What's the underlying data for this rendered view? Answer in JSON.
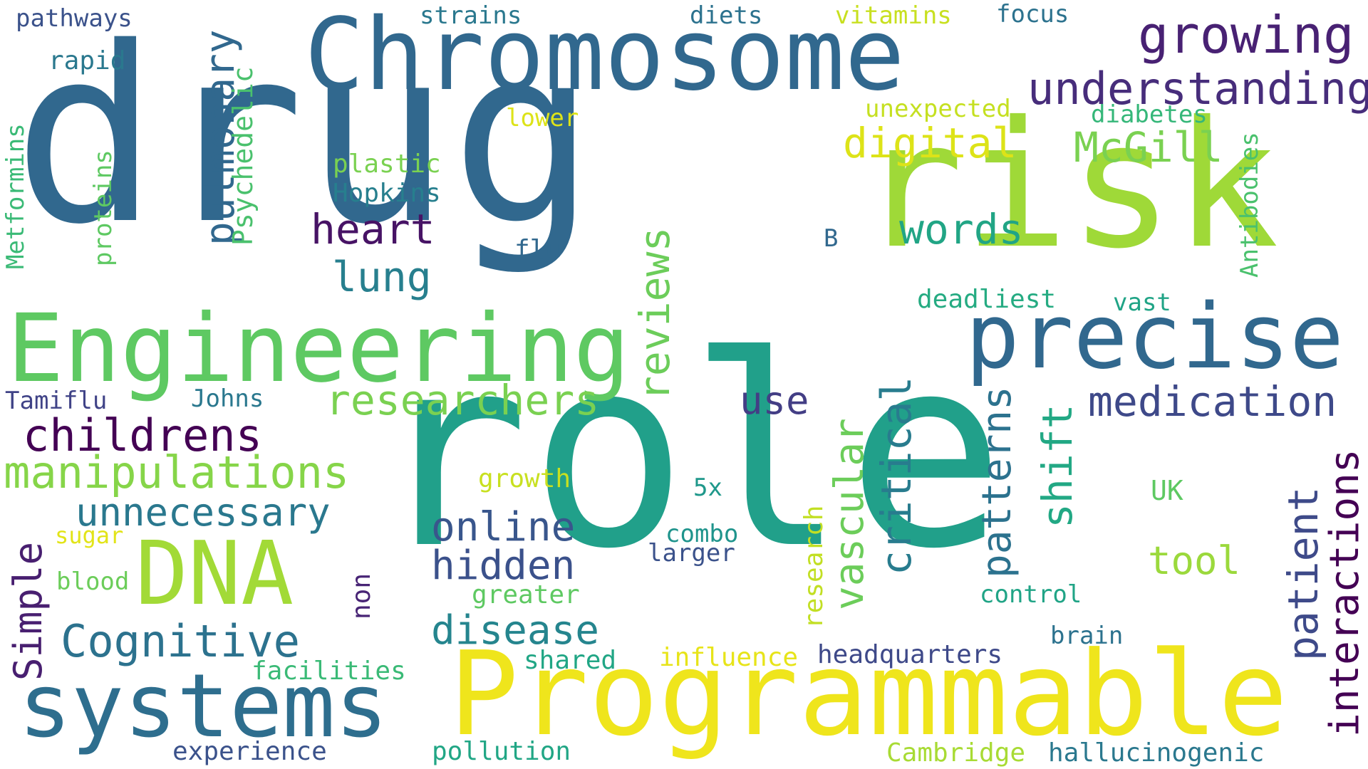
{
  "words": [
    {
      "text": "drug",
      "color": "#31688e",
      "vertical": false
    },
    {
      "text": "role",
      "color": "#21a08a",
      "vertical": false
    },
    {
      "text": "risk",
      "color": "#9fd938",
      "vertical": false
    },
    {
      "text": "Chromosome",
      "color": "#31688e",
      "vertical": false
    },
    {
      "text": "Programmable",
      "color": "#efe51c",
      "vertical": false
    },
    {
      "text": "Engineering",
      "color": "#5ec962",
      "vertical": false
    },
    {
      "text": "precise",
      "color": "#31688e",
      "vertical": false
    },
    {
      "text": "systems",
      "color": "#2e6e8e",
      "vertical": false
    },
    {
      "text": "DNA",
      "color": "#a2da37",
      "vertical": false
    },
    {
      "text": "growing",
      "color": "#482173",
      "vertical": false
    },
    {
      "text": "understanding",
      "color": "#472d7b",
      "vertical": false
    },
    {
      "text": "digital",
      "color": "#dde318",
      "vertical": false
    },
    {
      "text": "McGill",
      "color": "#7ad151",
      "vertical": false
    },
    {
      "text": "words",
      "color": "#21a585",
      "vertical": false
    },
    {
      "text": "heart",
      "color": "#471365",
      "vertical": false
    },
    {
      "text": "lung",
      "color": "#277f8e",
      "vertical": false
    },
    {
      "text": "researchers",
      "color": "#7ad151",
      "vertical": false
    },
    {
      "text": "childrens",
      "color": "#440154",
      "vertical": false
    },
    {
      "text": "manipulations",
      "color": "#86d549",
      "vertical": false
    },
    {
      "text": "unnecessary",
      "color": "#2a788e",
      "vertical": false
    },
    {
      "text": "Cognitive",
      "color": "#2c728e",
      "vertical": false
    },
    {
      "text": "online",
      "color": "#39568c",
      "vertical": false
    },
    {
      "text": "hidden",
      "color": "#3b518b",
      "vertical": false
    },
    {
      "text": "disease",
      "color": "#25858e",
      "vertical": false
    },
    {
      "text": "medication",
      "color": "#3e4989",
      "vertical": false
    },
    {
      "text": "use",
      "color": "#433e85",
      "vertical": false
    },
    {
      "text": "tool",
      "color": "#9bd93c",
      "vertical": false
    },
    {
      "text": "pathways",
      "color": "#3b528b",
      "vertical": false
    },
    {
      "text": "strains",
      "color": "#2a788e",
      "vertical": false
    },
    {
      "text": "diets",
      "color": "#2c728e",
      "vertical": false
    },
    {
      "text": "vitamins",
      "color": "#c8e020",
      "vertical": false
    },
    {
      "text": "focus",
      "color": "#2c728e",
      "vertical": false
    },
    {
      "text": "rapid",
      "color": "#2a788e",
      "vertical": false
    },
    {
      "text": "lower",
      "color": "#dde318",
      "vertical": false
    },
    {
      "text": "unexpected",
      "color": "#c5e021",
      "vertical": false
    },
    {
      "text": "diabetes",
      "color": "#35b779",
      "vertical": false
    },
    {
      "text": "plastic",
      "color": "#7ad151",
      "vertical": false
    },
    {
      "text": "Hopkins",
      "color": "#277f8e",
      "vertical": false
    },
    {
      "text": "flu",
      "color": "#31688e",
      "vertical": false
    },
    {
      "text": "B",
      "color": "#31688e",
      "vertical": false
    },
    {
      "text": "deadliest",
      "color": "#25ab82",
      "vertical": false
    },
    {
      "text": "vast",
      "color": "#20a486",
      "vertical": false
    },
    {
      "text": "Tamiflu",
      "color": "#404387",
      "vertical": false
    },
    {
      "text": "Johns",
      "color": "#2a788e",
      "vertical": false
    },
    {
      "text": "growth",
      "color": "#c8e020",
      "vertical": false
    },
    {
      "text": "5x",
      "color": "#1f988b",
      "vertical": false
    },
    {
      "text": "UK",
      "color": "#5ec962",
      "vertical": false
    },
    {
      "text": "combo",
      "color": "#1f948c",
      "vertical": false
    },
    {
      "text": "larger",
      "color": "#3b528b",
      "vertical": false
    },
    {
      "text": "sugar",
      "color": "#e2e418",
      "vertical": false
    },
    {
      "text": "blood",
      "color": "#6ccd5a",
      "vertical": false
    },
    {
      "text": "greater",
      "color": "#5ec962",
      "vertical": false
    },
    {
      "text": "control",
      "color": "#20a486",
      "vertical": false
    },
    {
      "text": "brain",
      "color": "#2c728e",
      "vertical": false
    },
    {
      "text": "influence",
      "color": "#e7e419",
      "vertical": false
    },
    {
      "text": "headquarters",
      "color": "#3e4989",
      "vertical": false
    },
    {
      "text": "shared",
      "color": "#21a685",
      "vertical": false
    },
    {
      "text": "facilities",
      "color": "#3aba76",
      "vertical": false
    },
    {
      "text": "experience",
      "color": "#3b528b",
      "vertical": false
    },
    {
      "text": "pollution",
      "color": "#21a685",
      "vertical": false
    },
    {
      "text": "Cambridge",
      "color": "#a8db34",
      "vertical": false
    },
    {
      "text": "hallucinogenic",
      "color": "#2a788e",
      "vertical": false
    },
    {
      "text": "pulmonary",
      "color": "#31688e",
      "vertical": true
    },
    {
      "text": "Psychedelic",
      "color": "#4ac16d",
      "vertical": true
    },
    {
      "text": "proteins",
      "color": "#5ec962",
      "vertical": true
    },
    {
      "text": "Metformins",
      "color": "#3aba76",
      "vertical": true
    },
    {
      "text": "reviews",
      "color": "#6ccd5a",
      "vertical": true
    },
    {
      "text": "Antibodies",
      "color": "#4ac16d",
      "vertical": true
    },
    {
      "text": "Simple",
      "color": "#481f70",
      "vertical": true
    },
    {
      "text": "non",
      "color": "#482475",
      "vertical": true
    },
    {
      "text": "research",
      "color": "#c2df23",
      "vertical": true
    },
    {
      "text": "vascular",
      "color": "#6ccd5a",
      "vertical": true
    },
    {
      "text": "critical",
      "color": "#287c8e",
      "vertical": true
    },
    {
      "text": "patterns",
      "color": "#2c728e",
      "vertical": true
    },
    {
      "text": "shift",
      "color": "#22a884",
      "vertical": true
    },
    {
      "text": "patient",
      "color": "#3e4a89",
      "vertical": true
    },
    {
      "text": "interactions",
      "color": "#440154",
      "vertical": true
    }
  ]
}
